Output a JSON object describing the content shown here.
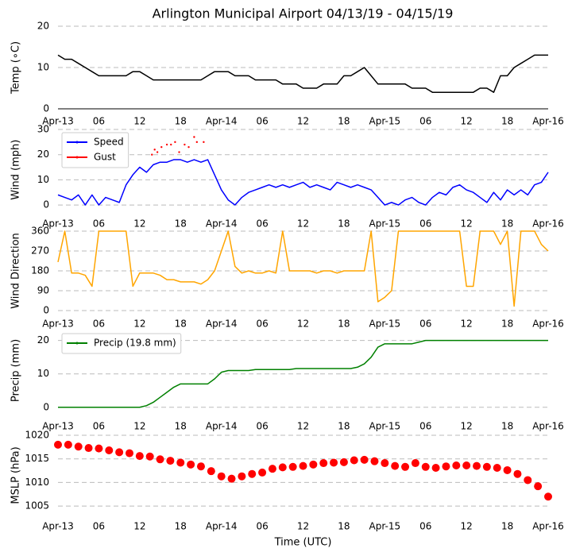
{
  "chart_data": [
    {
      "type": "line",
      "title": "Arlington Municipal Airport 04/13/19 - 04/15/19",
      "ylabel": "Temp ($^\\circ$C)",
      "xlim": [
        0,
        72
      ],
      "xticks": [
        {
          "value": 0,
          "label": "Apr-13"
        },
        {
          "value": 6,
          "label": "06"
        },
        {
          "value": 12,
          "label": "12"
        },
        {
          "value": 18,
          "label": "18"
        },
        {
          "value": 24,
          "label": "Apr-14"
        },
        {
          "value": 30,
          "label": "06"
        },
        {
          "value": 36,
          "label": "12"
        },
        {
          "value": 42,
          "label": "18"
        },
        {
          "value": 48,
          "label": "Apr-15"
        },
        {
          "value": 54,
          "label": "06"
        },
        {
          "value": 60,
          "label": "12"
        },
        {
          "value": 66,
          "label": "18"
        },
        {
          "value": 72,
          "label": "Apr-16"
        }
      ],
      "ylim": [
        0,
        20
      ],
      "yticks": [
        0,
        10,
        20
      ],
      "grid": true,
      "series": [
        {
          "color": "#000000",
          "x": [
            0,
            1,
            2,
            3,
            4,
            5,
            6,
            7,
            8,
            9,
            10,
            11,
            12,
            13,
            14,
            15,
            16,
            17,
            18,
            19,
            20,
            21,
            22,
            23,
            24,
            25,
            26,
            27,
            28,
            29,
            30,
            31,
            32,
            33,
            34,
            35,
            36,
            37,
            38,
            39,
            40,
            41,
            42,
            43,
            44,
            45,
            46,
            47,
            48,
            49,
            50,
            51,
            52,
            53,
            54,
            55,
            56,
            57,
            58,
            59,
            60,
            61,
            62,
            63,
            64,
            65,
            66,
            67,
            68,
            69,
            70,
            71,
            72
          ],
          "values": [
            13,
            12,
            12,
            11,
            10,
            9,
            8,
            8,
            8,
            8,
            8,
            9,
            9,
            8,
            7,
            7,
            7,
            7,
            7,
            7,
            7,
            7,
            8,
            9,
            9,
            9,
            8,
            8,
            8,
            7,
            7,
            7,
            7,
            6,
            6,
            6,
            5,
            5,
            5,
            6,
            6,
            6,
            8,
            8,
            9,
            10,
            8,
            6,
            6,
            6,
            6,
            6,
            5,
            5,
            5,
            4,
            4,
            4,
            4,
            4,
            4,
            4,
            5,
            5,
            4,
            8,
            8,
            10,
            11,
            12,
            13,
            13,
            13
          ]
        }
      ]
    },
    {
      "type": "line",
      "ylabel": "Wind (mph)",
      "ylim": [
        -2,
        30
      ],
      "yticks": [
        0,
        10,
        20,
        30
      ],
      "grid": true,
      "legend": "upper left",
      "series": [
        {
          "name": "Speed",
          "color": "#0000ff",
          "x": [
            0,
            1,
            2,
            3,
            4,
            5,
            6,
            7,
            8,
            9,
            10,
            11,
            12,
            13,
            14,
            15,
            16,
            17,
            18,
            19,
            20,
            21,
            22,
            23,
            24,
            25,
            26,
            27,
            28,
            29,
            30,
            31,
            32,
            33,
            34,
            35,
            36,
            37,
            38,
            39,
            40,
            41,
            42,
            43,
            44,
            45,
            46,
            47,
            48,
            49,
            50,
            51,
            52,
            53,
            54,
            55,
            56,
            57,
            58,
            59,
            60,
            61,
            62,
            63,
            64,
            65,
            66,
            67,
            68,
            69,
            70,
            71,
            72
          ],
          "values": [
            4,
            3,
            2,
            4,
            0,
            4,
            0,
            3,
            2,
            1,
            8,
            12,
            15,
            13,
            16,
            17,
            17,
            18,
            18,
            17,
            18,
            17,
            18,
            12,
            6,
            2,
            0,
            3,
            5,
            6,
            7,
            8,
            7,
            8,
            7,
            8,
            9,
            7,
            8,
            7,
            6,
            9,
            8,
            7,
            8,
            7,
            6,
            3,
            0,
            1,
            0,
            2,
            3,
            1,
            0,
            3,
            5,
            4,
            7,
            8,
            6,
            5,
            3,
            1,
            5,
            2,
            6,
            4,
            6,
            4,
            8,
            9,
            13
          ]
        },
        {
          "name": "Gust",
          "color": "#ff0000",
          "marker": "dot",
          "x": [
            13.8,
            14.2,
            14.6,
            15.2,
            16,
            16.6,
            17.2,
            17.8,
            18.6,
            19.2,
            20,
            20.4,
            21.4
          ],
          "values": [
            20,
            22,
            21,
            23,
            24,
            24,
            25,
            21,
            24,
            23,
            27,
            25,
            25
          ]
        }
      ]
    },
    {
      "type": "line",
      "ylabel": "Wind Direction",
      "ylim": [
        0,
        360
      ],
      "yticks": [
        0,
        90,
        180,
        270,
        360
      ],
      "grid": true,
      "series": [
        {
          "color": "#ffa500",
          "x": [
            0,
            1,
            2,
            3,
            4,
            5,
            6,
            7,
            8,
            9,
            10,
            11,
            12,
            13,
            14,
            15,
            16,
            17,
            18,
            19,
            20,
            21,
            22,
            23,
            24,
            25,
            26,
            27,
            28,
            29,
            30,
            31,
            32,
            33,
            34,
            35,
            36,
            37,
            38,
            39,
            40,
            41,
            42,
            43,
            44,
            45,
            46,
            47,
            48,
            49,
            50,
            51,
            52,
            53,
            54,
            55,
            56,
            57,
            58,
            59,
            60,
            61,
            62,
            63,
            64,
            65,
            66,
            67,
            68,
            69,
            70,
            71,
            72
          ],
          "values": [
            220,
            360,
            170,
            170,
            160,
            110,
            360,
            360,
            360,
            360,
            360,
            110,
            170,
            170,
            170,
            160,
            140,
            140,
            130,
            130,
            130,
            120,
            140,
            180,
            270,
            360,
            200,
            170,
            180,
            170,
            170,
            180,
            170,
            360,
            180,
            180,
            180,
            180,
            170,
            180,
            180,
            170,
            180,
            180,
            180,
            180,
            360,
            40,
            60,
            90,
            360,
            360,
            360,
            360,
            360,
            360,
            360,
            360,
            360,
            360,
            110,
            110,
            360,
            360,
            360,
            300,
            360,
            20,
            360,
            360,
            360,
            300,
            270
          ]
        }
      ]
    },
    {
      "type": "line",
      "ylabel": "Precip (mm)",
      "ylim": [
        -1,
        23
      ],
      "yticks": [
        0,
        10,
        20
      ],
      "grid": true,
      "legend": "upper left",
      "series": [
        {
          "name": "Precip (19.8 mm)",
          "color": "#008000",
          "x": [
            0,
            1,
            2,
            3,
            4,
            5,
            6,
            7,
            8,
            9,
            10,
            11,
            12,
            13,
            14,
            15,
            16,
            17,
            18,
            19,
            20,
            21,
            22,
            23,
            24,
            25,
            26,
            27,
            28,
            29,
            30,
            31,
            32,
            33,
            34,
            35,
            36,
            37,
            38,
            39,
            40,
            41,
            42,
            43,
            44,
            45,
            46,
            47,
            48,
            49,
            50,
            51,
            52,
            53,
            54,
            55,
            56,
            57,
            58,
            59,
            60,
            61,
            62,
            63,
            64,
            65,
            66,
            67,
            68,
            69,
            70,
            71,
            72
          ],
          "values": [
            0,
            0,
            0,
            0,
            0,
            0,
            0,
            0,
            0,
            0,
            0,
            0,
            0,
            0.5,
            1.5,
            3,
            4.5,
            6,
            7,
            7,
            7,
            7,
            7,
            8.5,
            10.5,
            11,
            11,
            11,
            11,
            11.3,
            11.3,
            11.3,
            11.3,
            11.3,
            11.3,
            11.6,
            11.6,
            11.6,
            11.6,
            11.6,
            11.6,
            11.6,
            11.6,
            11.6,
            12,
            13,
            15,
            18,
            19,
            19,
            19,
            19,
            19,
            19.5,
            20,
            20,
            20,
            20,
            20,
            20,
            20,
            20,
            20,
            20,
            20,
            20,
            20,
            20,
            20,
            20,
            20,
            20,
            20
          ]
        }
      ]
    },
    {
      "type": "scatter",
      "ylabel": "MSLP (hPa)",
      "xlabel": "Time (UTC)",
      "ylim": [
        1003,
        1020
      ],
      "yticks": [
        1005,
        1010,
        1015,
        1020
      ],
      "grid": true,
      "series": [
        {
          "color": "#ff0000",
          "x": [
            0,
            1.5,
            3,
            4.5,
            6,
            7.5,
            9,
            10.5,
            12,
            13.5,
            15,
            16.5,
            18,
            19.5,
            21,
            22.5,
            24,
            25.5,
            27,
            28.5,
            30,
            31.5,
            33,
            34.5,
            36,
            37.5,
            39,
            40.5,
            42,
            43.5,
            45,
            46.5,
            48,
            49.5,
            51,
            52.5,
            54,
            55.5,
            57,
            58.5,
            60,
            61.5,
            63,
            64.5,
            66,
            67.5,
            69,
            70.5,
            72
          ],
          "values": [
            1018,
            1018,
            1017.6,
            1017.3,
            1017.2,
            1016.8,
            1016.4,
            1016.2,
            1015.6,
            1015.5,
            1014.9,
            1014.6,
            1014.2,
            1013.8,
            1013.4,
            1012.4,
            1011.3,
            1010.8,
            1011.3,
            1011.8,
            1012.1,
            1012.9,
            1013.2,
            1013.3,
            1013.5,
            1013.8,
            1014.1,
            1014.2,
            1014.3,
            1014.7,
            1014.8,
            1014.5,
            1014.1,
            1013.5,
            1013.3,
            1014.1,
            1013.3,
            1013.1,
            1013.4,
            1013.6,
            1013.6,
            1013.5,
            1013.3,
            1013.1,
            1012.6,
            1011.8,
            1010.5,
            1009.2,
            1007
          ]
        }
      ]
    }
  ]
}
